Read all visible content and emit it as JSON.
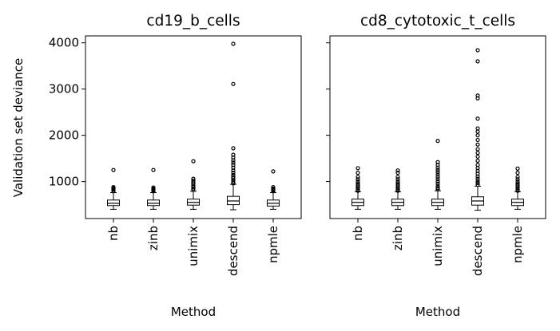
{
  "chart_data": {
    "type": "box",
    "ylabel": "Validation set deviance",
    "categories": [
      "nb",
      "zinb",
      "unimix",
      "descend",
      "npmle"
    ],
    "ylim": [
      200,
      4150
    ],
    "yticks": [
      1000,
      2000,
      3000,
      4000
    ],
    "grid": false,
    "panels": [
      {
        "title": "cd19_b_cells",
        "xlabel": "Method",
        "show_ytick_labels": true,
        "boxes": [
          {
            "q1": 480,
            "median": 530,
            "q3": 600,
            "whisker_low": 400,
            "whisker_high": 760,
            "outliers": [
              790,
              820,
              840,
              860,
              880,
              1250
            ]
          },
          {
            "q1": 480,
            "median": 530,
            "q3": 600,
            "whisker_low": 400,
            "whisker_high": 760,
            "outliers": [
              790,
              810,
              830,
              850,
              870,
              1250
            ]
          },
          {
            "q1": 490,
            "median": 550,
            "q3": 620,
            "whisker_low": 400,
            "whisker_high": 790,
            "outliers": [
              820,
              850,
              880,
              910,
              950,
              980,
              1020,
              1060,
              1440
            ]
          },
          {
            "q1": 500,
            "median": 580,
            "q3": 680,
            "whisker_low": 390,
            "whisker_high": 940,
            "outliers": [
              960,
              990,
              1030,
              1070,
              1100,
              1140,
              1190,
              1240,
              1300,
              1360,
              1410,
              1460,
              1520,
              1580,
              1720,
              3110,
              3980
            ]
          },
          {
            "q1": 470,
            "median": 530,
            "q3": 600,
            "whisker_low": 400,
            "whisker_high": 760,
            "outliers": [
              790,
              810,
              830,
              850,
              880,
              1220
            ]
          }
        ]
      },
      {
        "title": "cd8_cytotoxic_t_cells",
        "xlabel": "Method",
        "show_ytick_labels": false,
        "boxes": [
          {
            "q1": 480,
            "median": 550,
            "q3": 620,
            "whisker_low": 400,
            "whisker_high": 780,
            "outliers": [
              800,
              830,
              860,
              890,
              920,
              960,
              1000,
              1050,
              1100,
              1190,
              1290
            ]
          },
          {
            "q1": 480,
            "median": 550,
            "q3": 620,
            "whisker_low": 400,
            "whisker_high": 780,
            "outliers": [
              800,
              830,
              860,
              890,
              920,
              960,
              1000,
              1050,
              1100,
              1190,
              1240
            ]
          },
          {
            "q1": 480,
            "median": 550,
            "q3": 620,
            "whisker_low": 400,
            "whisker_high": 800,
            "outliers": [
              830,
              860,
              900,
              950,
              1000,
              1050,
              1100,
              1150,
              1200,
              1250,
              1300,
              1360,
              1420,
              1880
            ]
          },
          {
            "q1": 490,
            "median": 580,
            "q3": 670,
            "whisker_low": 380,
            "whisker_high": 900,
            "outliers": [
              930,
              970,
              1010,
              1060,
              1110,
              1170,
              1230,
              1290,
              1360,
              1450,
              1540,
              1620,
              1700,
              1800,
              1900,
              2000,
              2080,
              2150,
              2360,
              2800,
              2860,
              3600,
              3840
            ]
          },
          {
            "q1": 480,
            "median": 550,
            "q3": 620,
            "whisker_low": 400,
            "whisker_high": 780,
            "outliers": [
              800,
              830,
              860,
              890,
              920,
              960,
              1000,
              1050,
              1100,
              1190,
              1280
            ]
          }
        ]
      }
    ]
  }
}
